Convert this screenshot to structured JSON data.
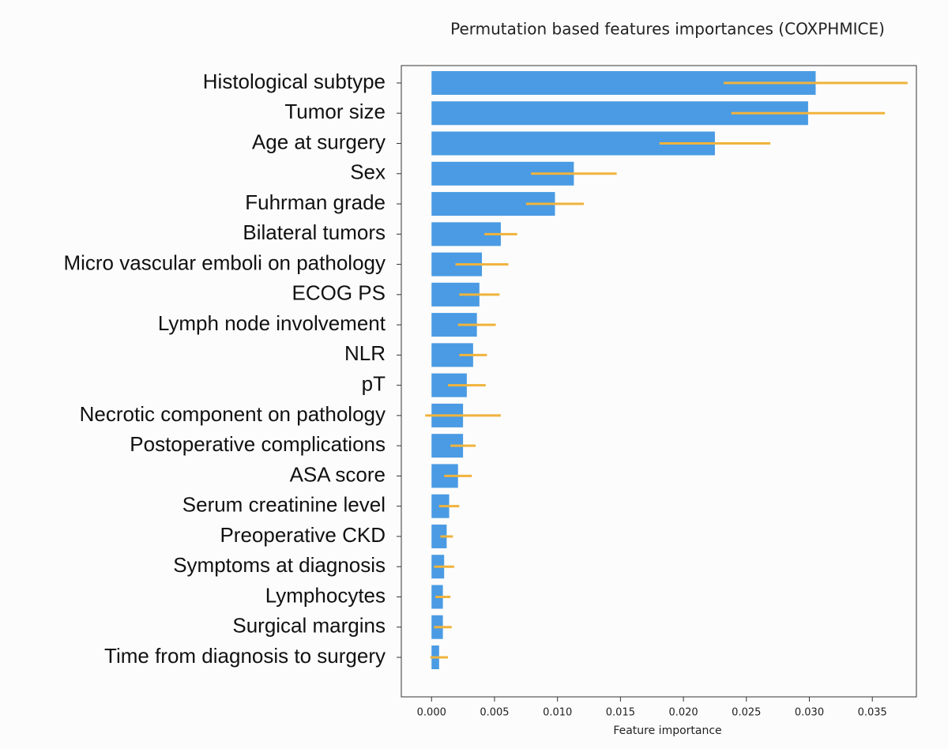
{
  "chart_data": {
    "type": "barh",
    "title": "Permutation based features importances (COXPHMICE)",
    "xlabel": "Feature importance",
    "categories": [
      "Histological subtype",
      "Tumor size",
      "Age at surgery",
      "Sex",
      "Fuhrman grade",
      "Bilateral tumors",
      "Micro vascular emboli on pathology",
      "ECOG PS",
      "Lymph node involvement",
      "NLR",
      "pT",
      "Necrotic component on pathology",
      "Postoperative complications",
      "ASA score",
      "Serum creatinine level",
      "Preoperative CKD",
      "Symptoms at diagnosis",
      "Lymphocytes",
      "Surgical margins",
      "Time from diagnosis to surgery"
    ],
    "values": [
      0.0305,
      0.0299,
      0.0225,
      0.0113,
      0.0098,
      0.0055,
      0.004,
      0.0038,
      0.0036,
      0.0033,
      0.0028,
      0.0025,
      0.0025,
      0.0021,
      0.0014,
      0.0012,
      0.001,
      0.0009,
      0.0009,
      0.0006
    ],
    "errors": [
      0.0073,
      0.0061,
      0.0044,
      0.0034,
      0.0023,
      0.0013,
      0.0021,
      0.0016,
      0.0015,
      0.0011,
      0.0015,
      0.003,
      0.001,
      0.0011,
      0.0008,
      0.0005,
      0.0008,
      0.0006,
      0.0007,
      0.0007
    ],
    "color": "#4a9be3",
    "error_color": "#f0b33c",
    "xlim": [
      -0.0024,
      0.0385
    ],
    "xticks": [
      {
        "value": 0,
        "label": "0.000"
      },
      {
        "value": 0.005,
        "label": "0.005"
      },
      {
        "value": 0.01,
        "label": "0.010"
      },
      {
        "value": 0.015,
        "label": "0.015"
      },
      {
        "value": 0.02,
        "label": "0.020"
      },
      {
        "value": 0.025,
        "label": "0.025"
      },
      {
        "value": 0.03,
        "label": "0.030"
      },
      {
        "value": 0.035,
        "label": "0.035"
      }
    ]
  }
}
